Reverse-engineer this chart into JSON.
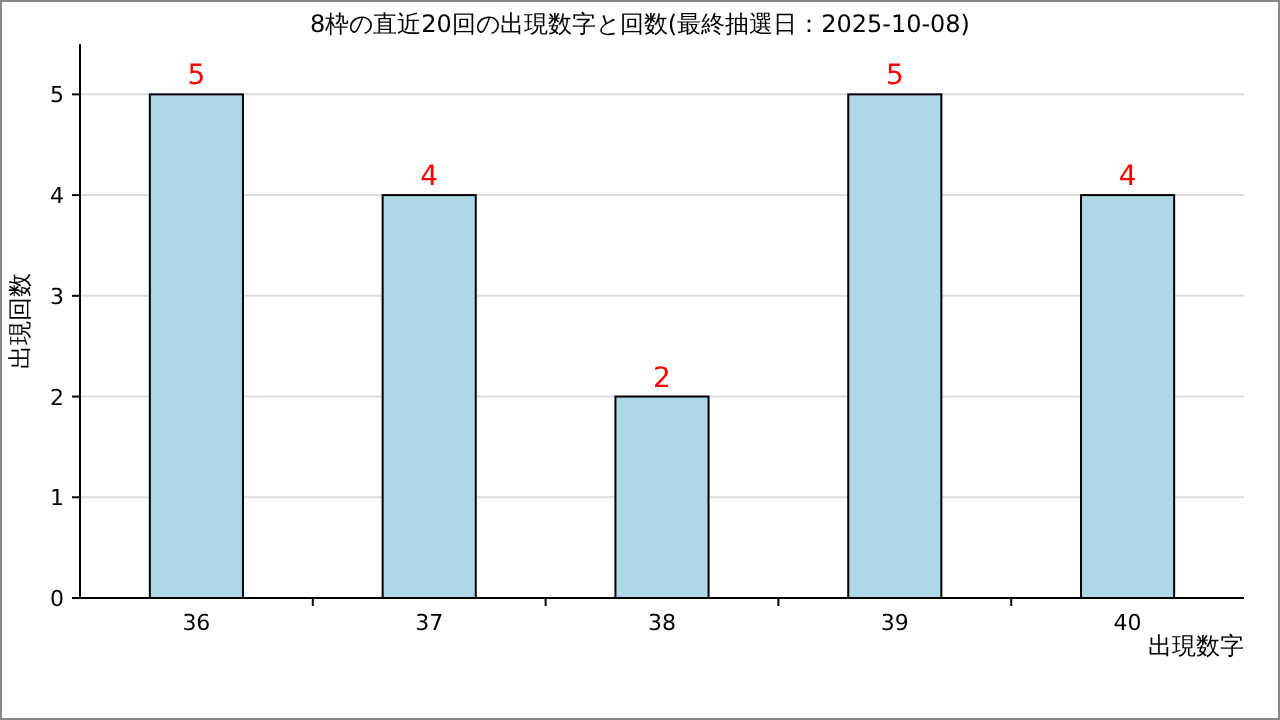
{
  "chart_data": {
    "type": "bar",
    "title": "8枠の直近20回の出現数字と回数(最終抽選日：2025-10-08)",
    "xlabel": "出現数字",
    "ylabel": "出現回数",
    "categories": [
      "36",
      "37",
      "38",
      "39",
      "40"
    ],
    "values": [
      5,
      4,
      2,
      5,
      4
    ],
    "color": "#add8e6",
    "data_labels": true,
    "ylim": [
      0,
      5.5
    ],
    "yticks": [
      0,
      1,
      2,
      3,
      4,
      5
    ],
    "grid": "y"
  }
}
